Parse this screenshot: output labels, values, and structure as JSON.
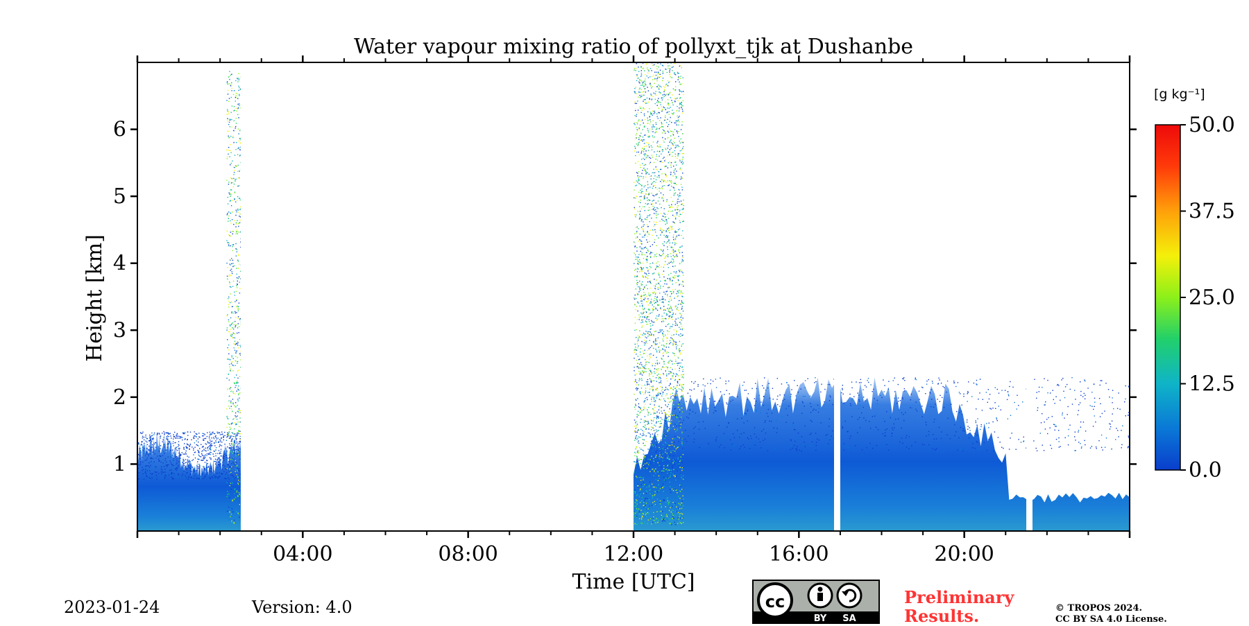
{
  "chart_data": {
    "type": "heatmap",
    "title": "Water vapour mixing ratio of pollyxt_tjk at Dushanbe",
    "xlabel": "Time [UTC]",
    "ylabel": "Height [km]",
    "xlim": [
      0,
      24
    ],
    "ylim": [
      0,
      7
    ],
    "x_tick_labels": [
      "04:00",
      "08:00",
      "12:00",
      "16:00",
      "20:00"
    ],
    "x_tick_values": [
      4,
      8,
      12,
      16,
      20
    ],
    "y_tick_labels": [
      "1",
      "2",
      "3",
      "4",
      "5",
      "6"
    ],
    "y_tick_values": [
      1,
      2,
      3,
      4,
      5,
      6
    ],
    "colorbar": {
      "unit_label": "[g kg⁻¹]",
      "range": [
        0,
        50
      ],
      "tick_labels": [
        "50.0",
        "37.5",
        "25.0",
        "12.5",
        "0.0"
      ],
      "tick_values": [
        50,
        37.5,
        25,
        12.5,
        0
      ],
      "colormap": [
        "#0a3ecc",
        "#0a78d6",
        "#0fb4c8",
        "#22d06a",
        "#8cf01a",
        "#f4f00a",
        "#ffa00a",
        "#ff3a0a",
        "#ee0a0a"
      ]
    },
    "data_regions": [
      {
        "name": "night-segment-1",
        "t_start": 0.0,
        "t_end": 2.5,
        "boundary_layer_top_km": 1.3,
        "value_range": [
          2,
          8
        ]
      },
      {
        "name": "noise-column-1",
        "t_start": 2.15,
        "t_end": 2.5,
        "top_km": 6.9
      },
      {
        "name": "daytime-segment",
        "t_start": 12.0,
        "t_end": 24.0,
        "boundary_layer_top_km": 2.0,
        "value_range": [
          2,
          8
        ]
      },
      {
        "name": "noise-column-2",
        "t_start": 12.0,
        "t_end": 13.2,
        "top_km": 7.0
      }
    ],
    "data_gaps_utc": [
      [
        2.5,
        12.0
      ],
      [
        16.85,
        17.0
      ],
      [
        21.5,
        21.65
      ]
    ]
  },
  "footer": {
    "date": "2023-01-24",
    "version": "Version: 4.0",
    "cc_badge_text": "cc",
    "cc_by": "BY",
    "cc_sa": "SA",
    "preliminary_line1": "Preliminary",
    "preliminary_line2": "Results.",
    "copyright_line1": "© TROPOS 2024.",
    "copyright_line2": "CC BY SA 4.0 License."
  }
}
